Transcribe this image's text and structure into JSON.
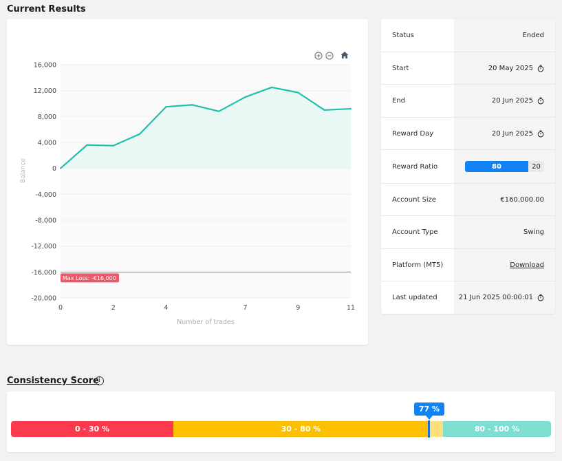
{
  "sections": {
    "current_results": "Current Results",
    "consistency_score": "Consistency Score"
  },
  "info": {
    "status": {
      "label": "Status",
      "value": "Ended"
    },
    "start": {
      "label": "Start",
      "value": "20 May 2025"
    },
    "end": {
      "label": "End",
      "value": "20 Jun 2025"
    },
    "reward_day": {
      "label": "Reward Day",
      "value": "20 Jun 2025"
    },
    "reward_ratio": {
      "label": "Reward Ratio",
      "trader": "80",
      "firm": "20"
    },
    "account_size": {
      "label": "Account Size",
      "value": "€160,000.00"
    },
    "account_type": {
      "label": "Account Type",
      "value": "Swing"
    },
    "platform": {
      "label": "Platform (MT5)",
      "value": "Download"
    },
    "last_updated": {
      "label": "Last updated",
      "value": "21 Jun 2025 00:00:01"
    }
  },
  "chart_toolbar": {
    "icons": [
      "zoom-in-icon",
      "zoom-out-icon",
      "home-icon"
    ]
  },
  "chart_data": {
    "type": "area",
    "xlabel": "Number of trades",
    "ylabel": "Balance",
    "ylim": [
      -20000,
      16000
    ],
    "xlim": [
      0,
      11
    ],
    "yticks": [
      "16,000",
      "12,000",
      "8,000",
      "4,000",
      "0",
      "-4,000",
      "-8,000",
      "-12,000",
      "-16,000",
      "-20,000"
    ],
    "xticks": [
      "0",
      "2",
      "4",
      "7",
      "9",
      "11"
    ],
    "x": [
      0,
      1,
      2,
      3,
      4,
      5,
      6,
      7,
      8,
      9,
      10,
      11
    ],
    "values": [
      0,
      3600,
      3500,
      5300,
      9500,
      9800,
      8800,
      11000,
      12500,
      11700,
      9000,
      9200
    ],
    "max_loss": {
      "value": -16000,
      "label": "Max Loss: -€16,000"
    },
    "line_color": "#1fbfae",
    "fill_color": "#e9f8f5",
    "max_loss_color": "#e85a6a",
    "grid": true
  },
  "consistency": {
    "score_label": "77 %",
    "score": 77,
    "segments": [
      {
        "label": "0 - 30 %",
        "color": "#fc3a4e"
      },
      {
        "label": "30 - 80 %",
        "color": "#fdc000"
      },
      {
        "label": "80 - 100 %",
        "color": "#7fded2"
      }
    ]
  }
}
